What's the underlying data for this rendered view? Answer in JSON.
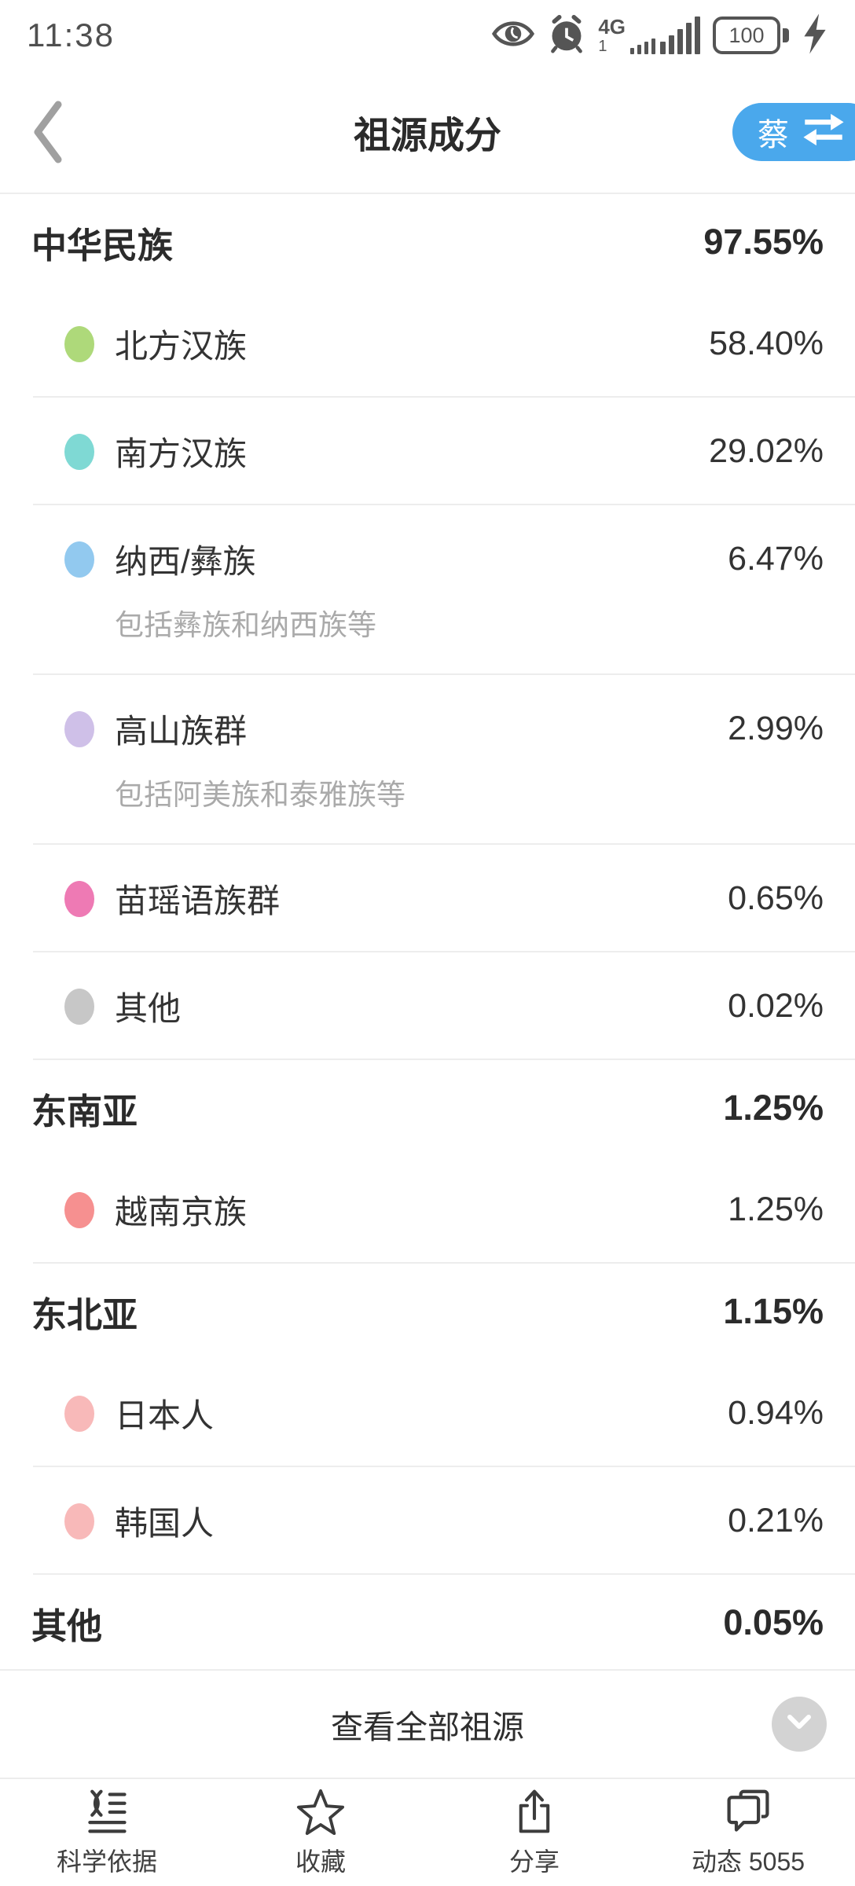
{
  "status_bar": {
    "time": "11:38",
    "network": "4G",
    "sim": "1",
    "battery_level": "100",
    "icons": [
      "eye-protection-icon",
      "alarm-icon",
      "signal-icon",
      "battery-icon",
      "charging-bolt-icon"
    ]
  },
  "header": {
    "title": "祖源成分",
    "profile_label": "蔡",
    "accent_color": "#4aa8ec"
  },
  "sections": [
    {
      "name": "中华民族",
      "percent": "97.55%",
      "items": [
        {
          "label": "北方汉族",
          "percent": "58.40%",
          "color": "#aed97a"
        },
        {
          "label": "南方汉族",
          "percent": "29.02%",
          "color": "#7fd9d4"
        },
        {
          "label": "纳西/彝族",
          "percent": "6.47%",
          "color": "#92c9ef",
          "note": "包括彝族和纳西族等"
        },
        {
          "label": "高山族群",
          "percent": "2.99%",
          "color": "#cfc0e8",
          "note": "包括阿美族和泰雅族等"
        },
        {
          "label": "苗瑶语族群",
          "percent": "0.65%",
          "color": "#ee7ab4"
        },
        {
          "label": "其他",
          "percent": "0.02%",
          "color": "#c7c7c7"
        }
      ]
    },
    {
      "name": "东南亚",
      "percent": "1.25%",
      "items": [
        {
          "label": "越南京族",
          "percent": "1.25%",
          "color": "#f69090"
        }
      ]
    },
    {
      "name": "东北亚",
      "percent": "1.15%",
      "items": [
        {
          "label": "日本人",
          "percent": "0.94%",
          "color": "#f8b9b9"
        },
        {
          "label": "韩国人",
          "percent": "0.21%",
          "color": "#f8b9b9"
        }
      ]
    },
    {
      "name": "其他",
      "percent": "0.05%",
      "items": []
    }
  ],
  "footer": {
    "view_all_label": "查看全部祖源"
  },
  "tab_bar": [
    {
      "label": "科学依据",
      "icon": "dna-list-icon"
    },
    {
      "label": "收藏",
      "icon": "star-icon"
    },
    {
      "label": "分享",
      "icon": "share-icon"
    },
    {
      "label": "动态 5055",
      "icon": "chat-bubbles-icon"
    }
  ]
}
